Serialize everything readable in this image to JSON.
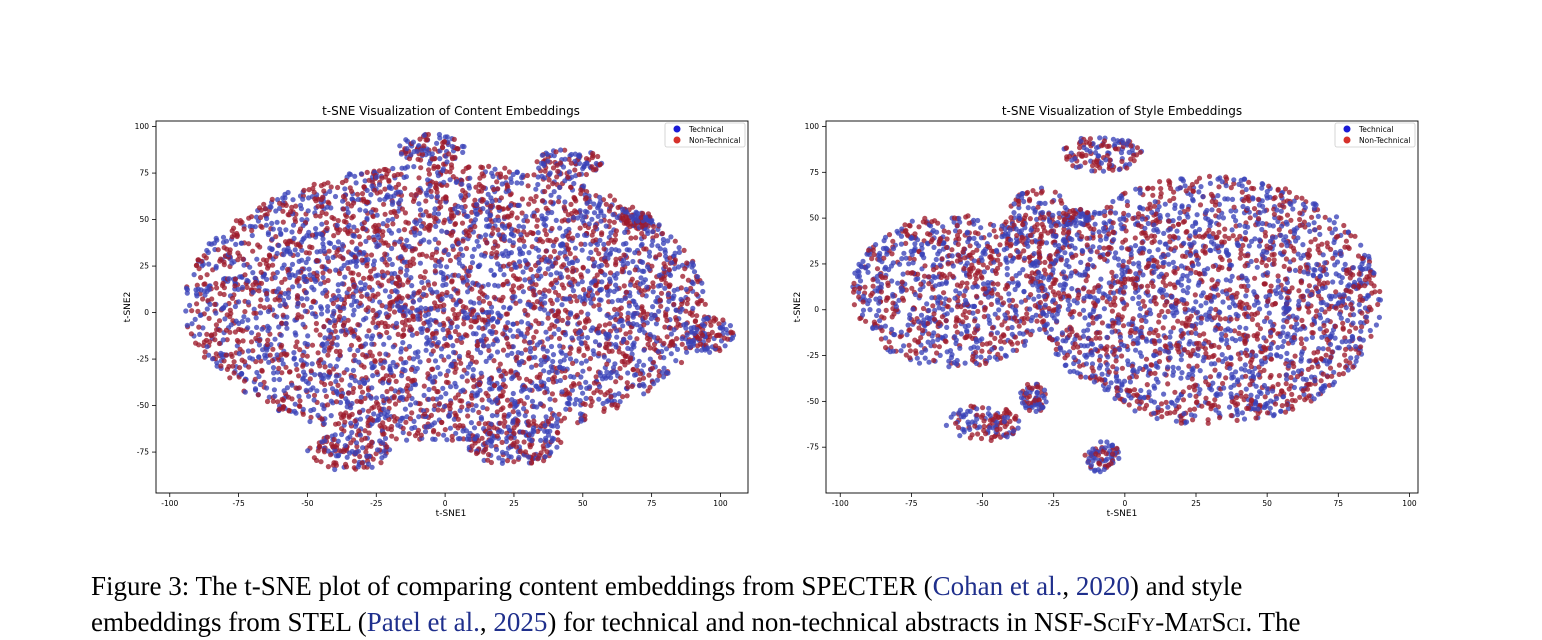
{
  "figure": {
    "caption": {
      "label": "Figure 3:",
      "line1_a": "The t-SNE plot of comparing content embeddings from SPECTER (",
      "cite1_author": "Cohan et al.",
      "cite1_sep": ", ",
      "cite1_year": "2020",
      "line1_b": ") and style",
      "line2_a": "embeddings from STEL (",
      "cite2_author": "Patel et al.",
      "cite2_sep": ", ",
      "cite2_year": "2025",
      "line2_b": ") for technical and non-technical abstracts in ",
      "dataset": "NSF-SciFy-MatSci",
      "line2_c": ". The"
    }
  },
  "chart_data": [
    {
      "type": "scatter",
      "title": "t-SNE Visualization of Content Embeddings",
      "xlabel": "t-SNE1",
      "ylabel": "t-SNE2",
      "xlim": [
        -105,
        110
      ],
      "ylim": [
        -97,
        103
      ],
      "xticks": [
        -100,
        -75,
        -50,
        -25,
        0,
        25,
        50,
        75,
        100
      ],
      "yticks": [
        100,
        75,
        50,
        25,
        0,
        -25,
        -50,
        -75
      ],
      "legend_position": "top-right",
      "series": [
        {
          "name": "Technical",
          "color": "#3a42b8"
        },
        {
          "name": "Non-Technical",
          "color": "#9e1b2c"
        }
      ],
      "clusters": [
        {
          "x": 0,
          "y": 5,
          "rx": 95,
          "ry": 75
        },
        {
          "x": -5,
          "y": 88,
          "rx": 12,
          "ry": 8
        },
        {
          "x": 45,
          "y": 80,
          "rx": 12,
          "ry": 8
        },
        {
          "x": 25,
          "y": -70,
          "rx": 18,
          "ry": 12
        },
        {
          "x": -35,
          "y": -75,
          "rx": 15,
          "ry": 10
        },
        {
          "x": 70,
          "y": 50,
          "rx": 6,
          "ry": 5
        },
        {
          "x": 95,
          "y": -12,
          "rx": 10,
          "ry": 10
        }
      ]
    },
    {
      "type": "scatter",
      "title": "t-SNE Visualization of Style Embeddings",
      "xlabel": "t-SNE1",
      "ylabel": "t-SNE2",
      "xlim": [
        -105,
        103
      ],
      "ylim": [
        -100,
        103
      ],
      "xticks": [
        -100,
        -75,
        -50,
        -25,
        0,
        25,
        50,
        75,
        100
      ],
      "yticks": [
        100,
        75,
        50,
        25,
        0,
        -25,
        -50,
        -75
      ],
      "legend_position": "top-right",
      "series": [
        {
          "name": "Technical",
          "color": "#3a42b8"
        },
        {
          "name": "Non-Technical",
          "color": "#9e1b2c"
        }
      ],
      "clusters": [
        {
          "x": -60,
          "y": 10,
          "rx": 36,
          "ry": 42
        },
        {
          "x": -30,
          "y": 45,
          "rx": 12,
          "ry": 22
        },
        {
          "x": 30,
          "y": 5,
          "rx": 60,
          "ry": 68
        },
        {
          "x": -8,
          "y": 85,
          "rx": 14,
          "ry": 10
        },
        {
          "x": -50,
          "y": -62,
          "rx": 13,
          "ry": 10
        },
        {
          "x": -32,
          "y": -48,
          "rx": 5,
          "ry": 8
        },
        {
          "x": -8,
          "y": -80,
          "rx": 6,
          "ry": 9
        },
        {
          "x": -17,
          "y": 50,
          "rx": 5,
          "ry": 5
        }
      ]
    }
  ]
}
